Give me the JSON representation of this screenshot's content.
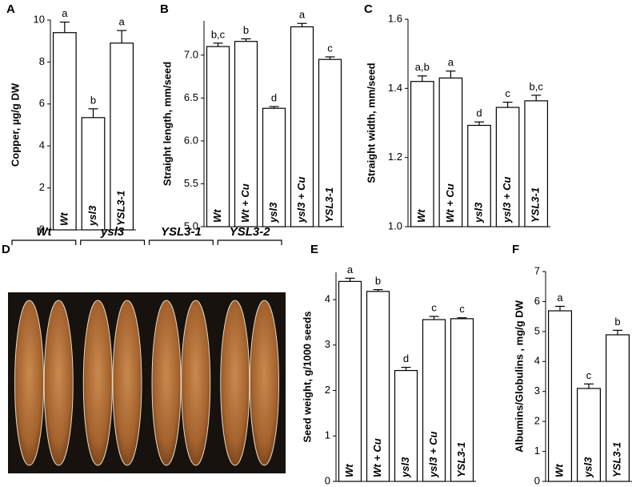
{
  "chart_data": [
    {
      "panel": "A",
      "type": "bar",
      "ylabel": "Copper, µg/g DW",
      "categories": [
        "Wt",
        "ysl3",
        "YSL3-1"
      ],
      "values": [
        9.4,
        5.35,
        8.9
      ],
      "errors": [
        0.5,
        0.42,
        0.6
      ],
      "annotations": [
        "a",
        "b",
        "a"
      ],
      "color": "#ffffff",
      "ylim": [
        0,
        10
      ],
      "yticks": [
        0,
        2,
        4,
        6,
        8,
        10
      ]
    },
    {
      "panel": "B",
      "type": "bar",
      "ylabel": "Straight length, mm/seed",
      "categories": [
        "Wt",
        "Wt + Cu",
        "ysl3",
        "ysl3 + Cu",
        "YSL3-1"
      ],
      "values": [
        7.1,
        7.16,
        6.38,
        7.33,
        6.95
      ],
      "errors": [
        0.04,
        0.03,
        0.02,
        0.04,
        0.03
      ],
      "annotations": [
        "b,c",
        "b",
        "d",
        "a",
        "c"
      ],
      "color": "#ffffff",
      "ylim": [
        5.0,
        7.4
      ],
      "yticks": [
        {
          "value": 5,
          "label": "5.0"
        },
        5.5,
        {
          "value": 6,
          "label": "6.0"
        },
        6.5,
        {
          "value": 7,
          "label": "7.0"
        }
      ]
    },
    {
      "panel": "C",
      "type": "bar",
      "ylabel": "Straight width, mm/seed",
      "categories": [
        "Wt",
        "Wt + Cu",
        "ysl3",
        "ysl3 + Cu",
        "YSL3-1"
      ],
      "values": [
        1.42,
        1.43,
        1.293,
        1.345,
        1.364
      ],
      "errors": [
        0.016,
        0.02,
        0.01,
        0.015,
        0.016
      ],
      "annotations": [
        "a,b",
        "a",
        "d",
        "c",
        "b,c"
      ],
      "color": "#ffffff",
      "ylim": [
        1.0,
        1.6
      ],
      "yticks": [
        {
          "value": 1,
          "label": "1.0"
        },
        1.2,
        1.4,
        1.6
      ]
    },
    {
      "panel": "D",
      "type": "image",
      "labels": [
        "Wt",
        "ysl3",
        "YSL3-1",
        "YSL3-2"
      ]
    },
    {
      "panel": "E",
      "type": "bar",
      "ylabel": "Seed weight, g/1000 seeds",
      "categories": [
        "Wt",
        "Wt + Cu",
        "ysl3",
        "ysl3 + Cu",
        "YSL3-1"
      ],
      "values": [
        4.4,
        4.18,
        2.44,
        3.56,
        3.58
      ],
      "errors": [
        0.07,
        0.04,
        0.07,
        0.07,
        0.02
      ],
      "annotations": [
        "a",
        "b",
        "d",
        "c",
        "c"
      ],
      "color": "#ffffff",
      "ylim": [
        0,
        4.6
      ],
      "yticks": [
        0,
        1,
        2,
        3,
        4
      ]
    },
    {
      "panel": "F",
      "type": "bar",
      "ylabel": "Albumins/Globulins , mg/g DW",
      "categories": [
        "Wt",
        "ysl3",
        "YSL3-1"
      ],
      "values": [
        5.69,
        3.1,
        4.89
      ],
      "errors": [
        0.15,
        0.15,
        0.15
      ],
      "annotations": [
        "a",
        "c",
        "b"
      ],
      "color": "#ffffff",
      "ylim": [
        0,
        7
      ],
      "yticks": [
        0,
        1,
        2,
        3,
        4,
        5,
        6,
        7
      ]
    }
  ]
}
